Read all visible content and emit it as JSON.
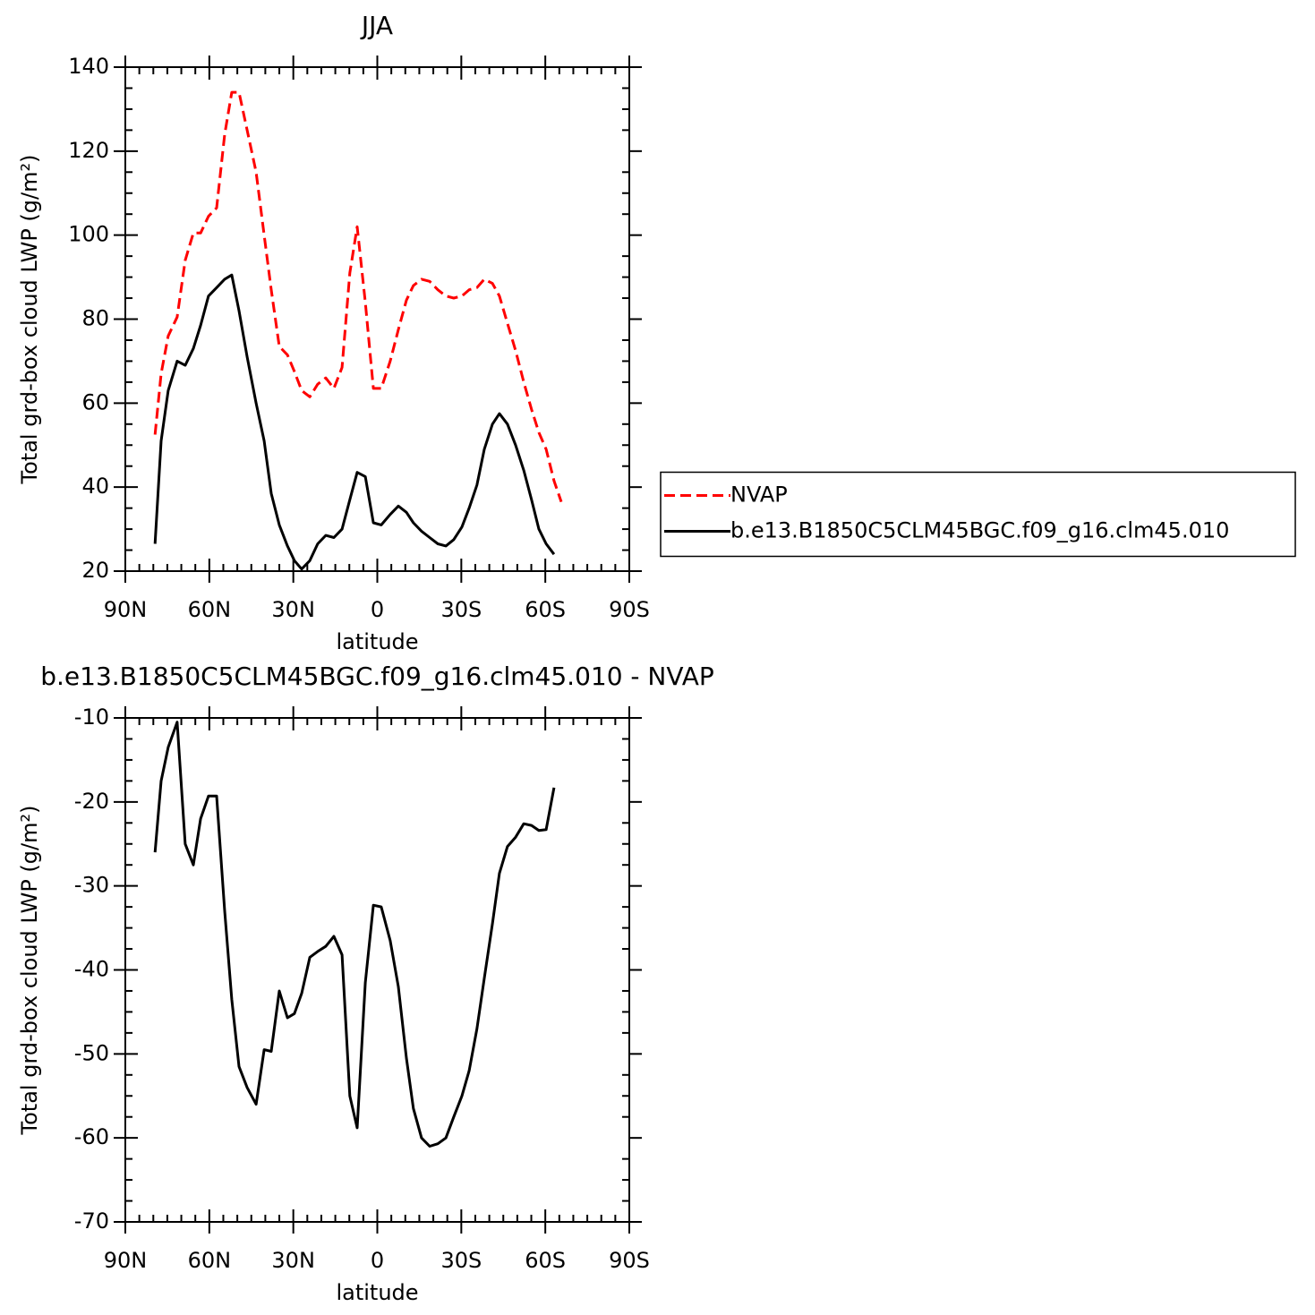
{
  "chart_data": [
    {
      "type": "line",
      "title": "JJA",
      "xlabel": "latitude",
      "ylabel": "Total grd-box cloud LWP (g/m²)",
      "x": [
        79.4,
        77.2,
        74.7,
        71.5,
        68.6,
        65.7,
        63.1,
        60.3,
        57.4,
        54.5,
        52,
        49.4,
        46.5,
        43.3,
        40.4,
        37.9,
        35,
        32.1,
        29.6,
        27,
        24.1,
        21.3,
        18.4,
        15.5,
        12.6,
        9.8,
        7.2,
        4.3,
        1.4,
        -1.4,
        -4.6,
        -7.5,
        -10.4,
        -12.9,
        -15.8,
        -18.7,
        -21.6,
        -24.5,
        -27.3,
        -30.2,
        -32.8,
        -35.6,
        -38.2,
        -41.1,
        -43.6,
        -46.5,
        -49.4,
        -52.3,
        -55.1,
        -57.7,
        -60.3,
        -63.1,
        -65.7
      ],
      "series": [
        {
          "name": "NVAP",
          "color": "#ff0000",
          "linestyle": "dashed",
          "values": [
            52.5,
            67,
            76,
            80.5,
            94,
            100.5,
            100.5,
            104.5,
            106.5,
            124,
            134,
            134,
            125,
            115,
            100,
            87,
            73.5,
            71.5,
            67.5,
            63,
            61.5,
            64.5,
            66,
            63.5,
            68.5,
            91,
            102,
            84,
            63.5,
            63.5,
            70,
            77.5,
            84.5,
            88,
            89.5,
            89,
            87,
            85.5,
            85,
            85.5,
            87,
            87.5,
            89.5,
            88.5,
            85.5,
            79,
            72.5,
            65,
            58.5,
            53,
            49,
            41.5,
            36.5
          ]
        },
        {
          "name": "b.e13.B1850C5CLM45BGC.f09_g16.clm45.010",
          "color": "#000000",
          "linestyle": "solid",
          "values": [
            26.5,
            51,
            63,
            70,
            69,
            73,
            78.5,
            85.5,
            87.5,
            89.5,
            90.5,
            82,
            71,
            60,
            51,
            38.5,
            31,
            26,
            22.5,
            20.5,
            22.5,
            26.5,
            28.5,
            28,
            30,
            37,
            43.5,
            42.5,
            31.5,
            31,
            33.5,
            35.5,
            34,
            31.5,
            29.5,
            28,
            26.5,
            26,
            27.5,
            30.5,
            35,
            40.5,
            49,
            55,
            57.5,
            55,
            50,
            44,
            37,
            30,
            26.5,
            24,
            null
          ]
        }
      ],
      "xlim": [
        90,
        -90
      ],
      "xticks": [
        {
          "value": 90,
          "label": "90N"
        },
        {
          "value": 60,
          "label": "60N"
        },
        {
          "value": 30,
          "label": "30N"
        },
        0,
        {
          "value": -30,
          "label": "30S"
        },
        {
          "value": -60,
          "label": "60S"
        },
        {
          "value": -90,
          "label": "90S"
        }
      ],
      "ylim": [
        20,
        140
      ],
      "yticks": [
        20,
        40,
        60,
        80,
        100,
        120,
        140
      ],
      "legend": "right"
    },
    {
      "type": "line",
      "title": "b.e13.B1850C5CLM45BGC.f09_g16.clm45.010 - NVAP",
      "xlabel": "latitude",
      "ylabel": "Total grd-box cloud LWP (g/m²)",
      "x": [
        79.4,
        77.2,
        74.7,
        71.5,
        68.6,
        65.7,
        63.1,
        60.3,
        57.4,
        54.5,
        52,
        49.4,
        46.5,
        43.3,
        40.4,
        37.9,
        35,
        32.1,
        29.6,
        27,
        24.1,
        21.3,
        18.4,
        15.5,
        12.6,
        9.8,
        7.2,
        4.3,
        1.4,
        -1.4,
        -4.6,
        -7.5,
        -10.4,
        -12.9,
        -15.8,
        -18.7,
        -21.6,
        -24.5,
        -27.3,
        -30.2,
        -32.8,
        -35.6,
        -38.2,
        -41.1,
        -43.6,
        -46.5,
        -49.4,
        -52.3,
        -55.1,
        -57.7,
        -60.3,
        -63.1
      ],
      "series": [
        {
          "color": "#000000",
          "linestyle": "solid",
          "values": [
            -26,
            -17.5,
            -13.5,
            -10.5,
            -25,
            -27.5,
            -22,
            -19.3,
            -19.3,
            -33,
            -43.5,
            -51.5,
            -54,
            -56,
            -49.5,
            -49.7,
            -42.5,
            -45.7,
            -45.2,
            -42.8,
            -38.5,
            -37.8,
            -37.2,
            -36,
            -38.2,
            -55,
            -58.8,
            -41.5,
            -32.3,
            -32.5,
            -36.5,
            -42,
            -50.5,
            -56.5,
            -60,
            -61,
            -60.7,
            -60,
            -57.5,
            -55,
            -52,
            -47,
            -41,
            -34.5,
            -28.5,
            -25.3,
            -24.2,
            -22.6,
            -22.8,
            -23.4,
            -23.3,
            -18.3
          ]
        }
      ],
      "xlim": [
        90,
        -90
      ],
      "xticks": [
        {
          "value": 90,
          "label": "90N"
        },
        {
          "value": 60,
          "label": "60N"
        },
        {
          "value": 30,
          "label": "30N"
        },
        0,
        {
          "value": -30,
          "label": "30S"
        },
        {
          "value": -60,
          "label": "60S"
        },
        {
          "value": -90,
          "label": "90S"
        }
      ],
      "ylim": [
        -70,
        -10
      ],
      "yticks": [
        -70,
        -60,
        -50,
        -40,
        -30,
        -20,
        -10
      ]
    }
  ]
}
